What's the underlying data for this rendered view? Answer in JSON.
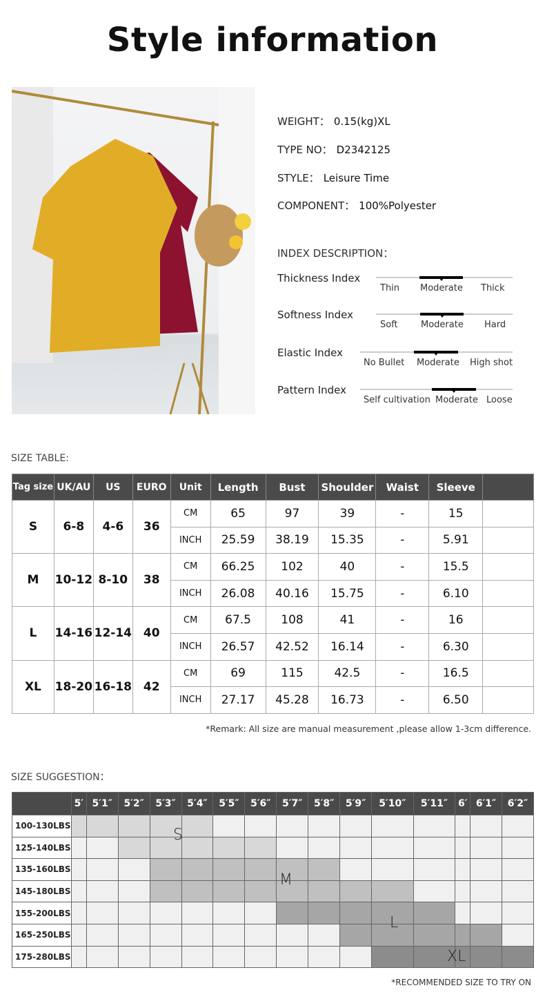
{
  "title": "Style information",
  "info": [
    {
      "label": "WEIGHT：",
      "value": "0.15(kg)XL"
    },
    {
      "label": "TYPE NO：",
      "value": "D2342125"
    },
    {
      "label": "STYLE：",
      "value": "Leisure Time"
    },
    {
      "label": "COMPONENT：",
      "value": "100%Polyester"
    }
  ],
  "index_heading": "INDEX DESCRIPTION：",
  "indexes": [
    {
      "label": "Thickness Index",
      "options": [
        "Thin",
        "Moderate",
        "Thick"
      ],
      "selected": "Moderate"
    },
    {
      "label": "Softness Index",
      "options": [
        "Soft",
        "Moderate",
        "Hard"
      ],
      "selected": "Moderate"
    },
    {
      "label": "Elastic Index",
      "options": [
        "No Bullet",
        "Moderate",
        "High shot"
      ],
      "selected": "Moderate"
    },
    {
      "label": "Pattern Index",
      "options": [
        "Self cultivation",
        "Moderate",
        "Loose"
      ],
      "selected": "Moderate"
    }
  ],
  "size_table": {
    "heading": "SIZE TABLE:",
    "headers": [
      "Tag size",
      "UK/AU",
      "US",
      "EURO",
      "Unit",
      "Length",
      "Bust",
      "Shoulder",
      "Waist",
      "Sleeve",
      ""
    ],
    "rows": [
      {
        "tag": "S",
        "uk": "6-8",
        "us": "4-6",
        "euro": "36",
        "cm": [
          "65",
          "97",
          "39",
          "-",
          "15"
        ],
        "inch": [
          "25.59",
          "38.19",
          "15.35",
          "-",
          "5.91"
        ]
      },
      {
        "tag": "M",
        "uk": "10-12",
        "us": "8-10",
        "euro": "38",
        "cm": [
          "66.25",
          "102",
          "40",
          "-",
          "15.5"
        ],
        "inch": [
          "26.08",
          "40.16",
          "15.75",
          "-",
          "6.10"
        ]
      },
      {
        "tag": "L",
        "uk": "14-16",
        "us": "12-14",
        "euro": "40",
        "cm": [
          "67.5",
          "108",
          "41",
          "-",
          "16"
        ],
        "inch": [
          "26.57",
          "42.52",
          "16.14",
          "-",
          "6.30"
        ]
      },
      {
        "tag": "XL",
        "uk": "18-20",
        "us": "16-18",
        "euro": "42",
        "cm": [
          "69",
          "115",
          "42.5",
          "-",
          "16.5"
        ],
        "inch": [
          "27.17",
          "45.28",
          "16.73",
          "-",
          "6.50"
        ]
      }
    ],
    "units": [
      "CM",
      "INCH"
    ],
    "remark": "*Remark: All size are manual measurement ,please allow 1-3cm difference."
  },
  "size_suggestion": {
    "heading": "SIZE SUGGESTION：",
    "heights": [
      "5′",
      "5′1″",
      "5′2″",
      "5′3″",
      "5′4″",
      "5′5″",
      "5′6″",
      "5′7″",
      "5′8″",
      "5′9″",
      "5′10″",
      "5′11″",
      "6′",
      "6′1″",
      "6′2″"
    ],
    "weights": [
      "100-130LBS",
      "125-140LBS",
      "135-160LBS",
      "145-180LBS",
      "155-200LBS",
      "165-250LBS",
      "175-280LBS"
    ],
    "grid": [
      [
        "S",
        "S",
        "S",
        "S",
        "S",
        "",
        "",
        "",
        "",
        "",
        "",
        "",
        "",
        "",
        ""
      ],
      [
        "",
        "",
        "S",
        "S",
        "S",
        "S",
        "S",
        "",
        "",
        "",
        "",
        "",
        "",
        "",
        ""
      ],
      [
        "",
        "",
        "",
        "M",
        "M",
        "M",
        "M",
        "M",
        "M",
        "",
        "",
        "",
        "",
        "",
        ""
      ],
      [
        "",
        "",
        "",
        "M",
        "M",
        "M",
        "M",
        "M",
        "M",
        "M",
        "M",
        "",
        "",
        "",
        ""
      ],
      [
        "",
        "",
        "",
        "",
        "",
        "",
        "",
        "L",
        "L",
        "L",
        "L",
        "L",
        "",
        "",
        ""
      ],
      [
        "",
        "",
        "",
        "",
        "",
        "",
        "",
        "",
        "",
        "L",
        "L",
        "L",
        "L",
        "L",
        ""
      ],
      [
        "",
        "",
        "",
        "",
        "",
        "",
        "",
        "",
        "",
        "",
        "XL",
        "XL",
        "XL",
        "XL",
        "XL"
      ]
    ],
    "size_colors": {
      "S": "#d8d8d8",
      "M": "#c0c0c0",
      "L": "#a6a6a6",
      "XL": "#8c8c8c",
      "empty": "#f0f0f0"
    },
    "size_labels": [
      "S",
      "M",
      "L",
      "XL"
    ],
    "note": "*RECOMMENDED SIZE TO TRY ON"
  }
}
